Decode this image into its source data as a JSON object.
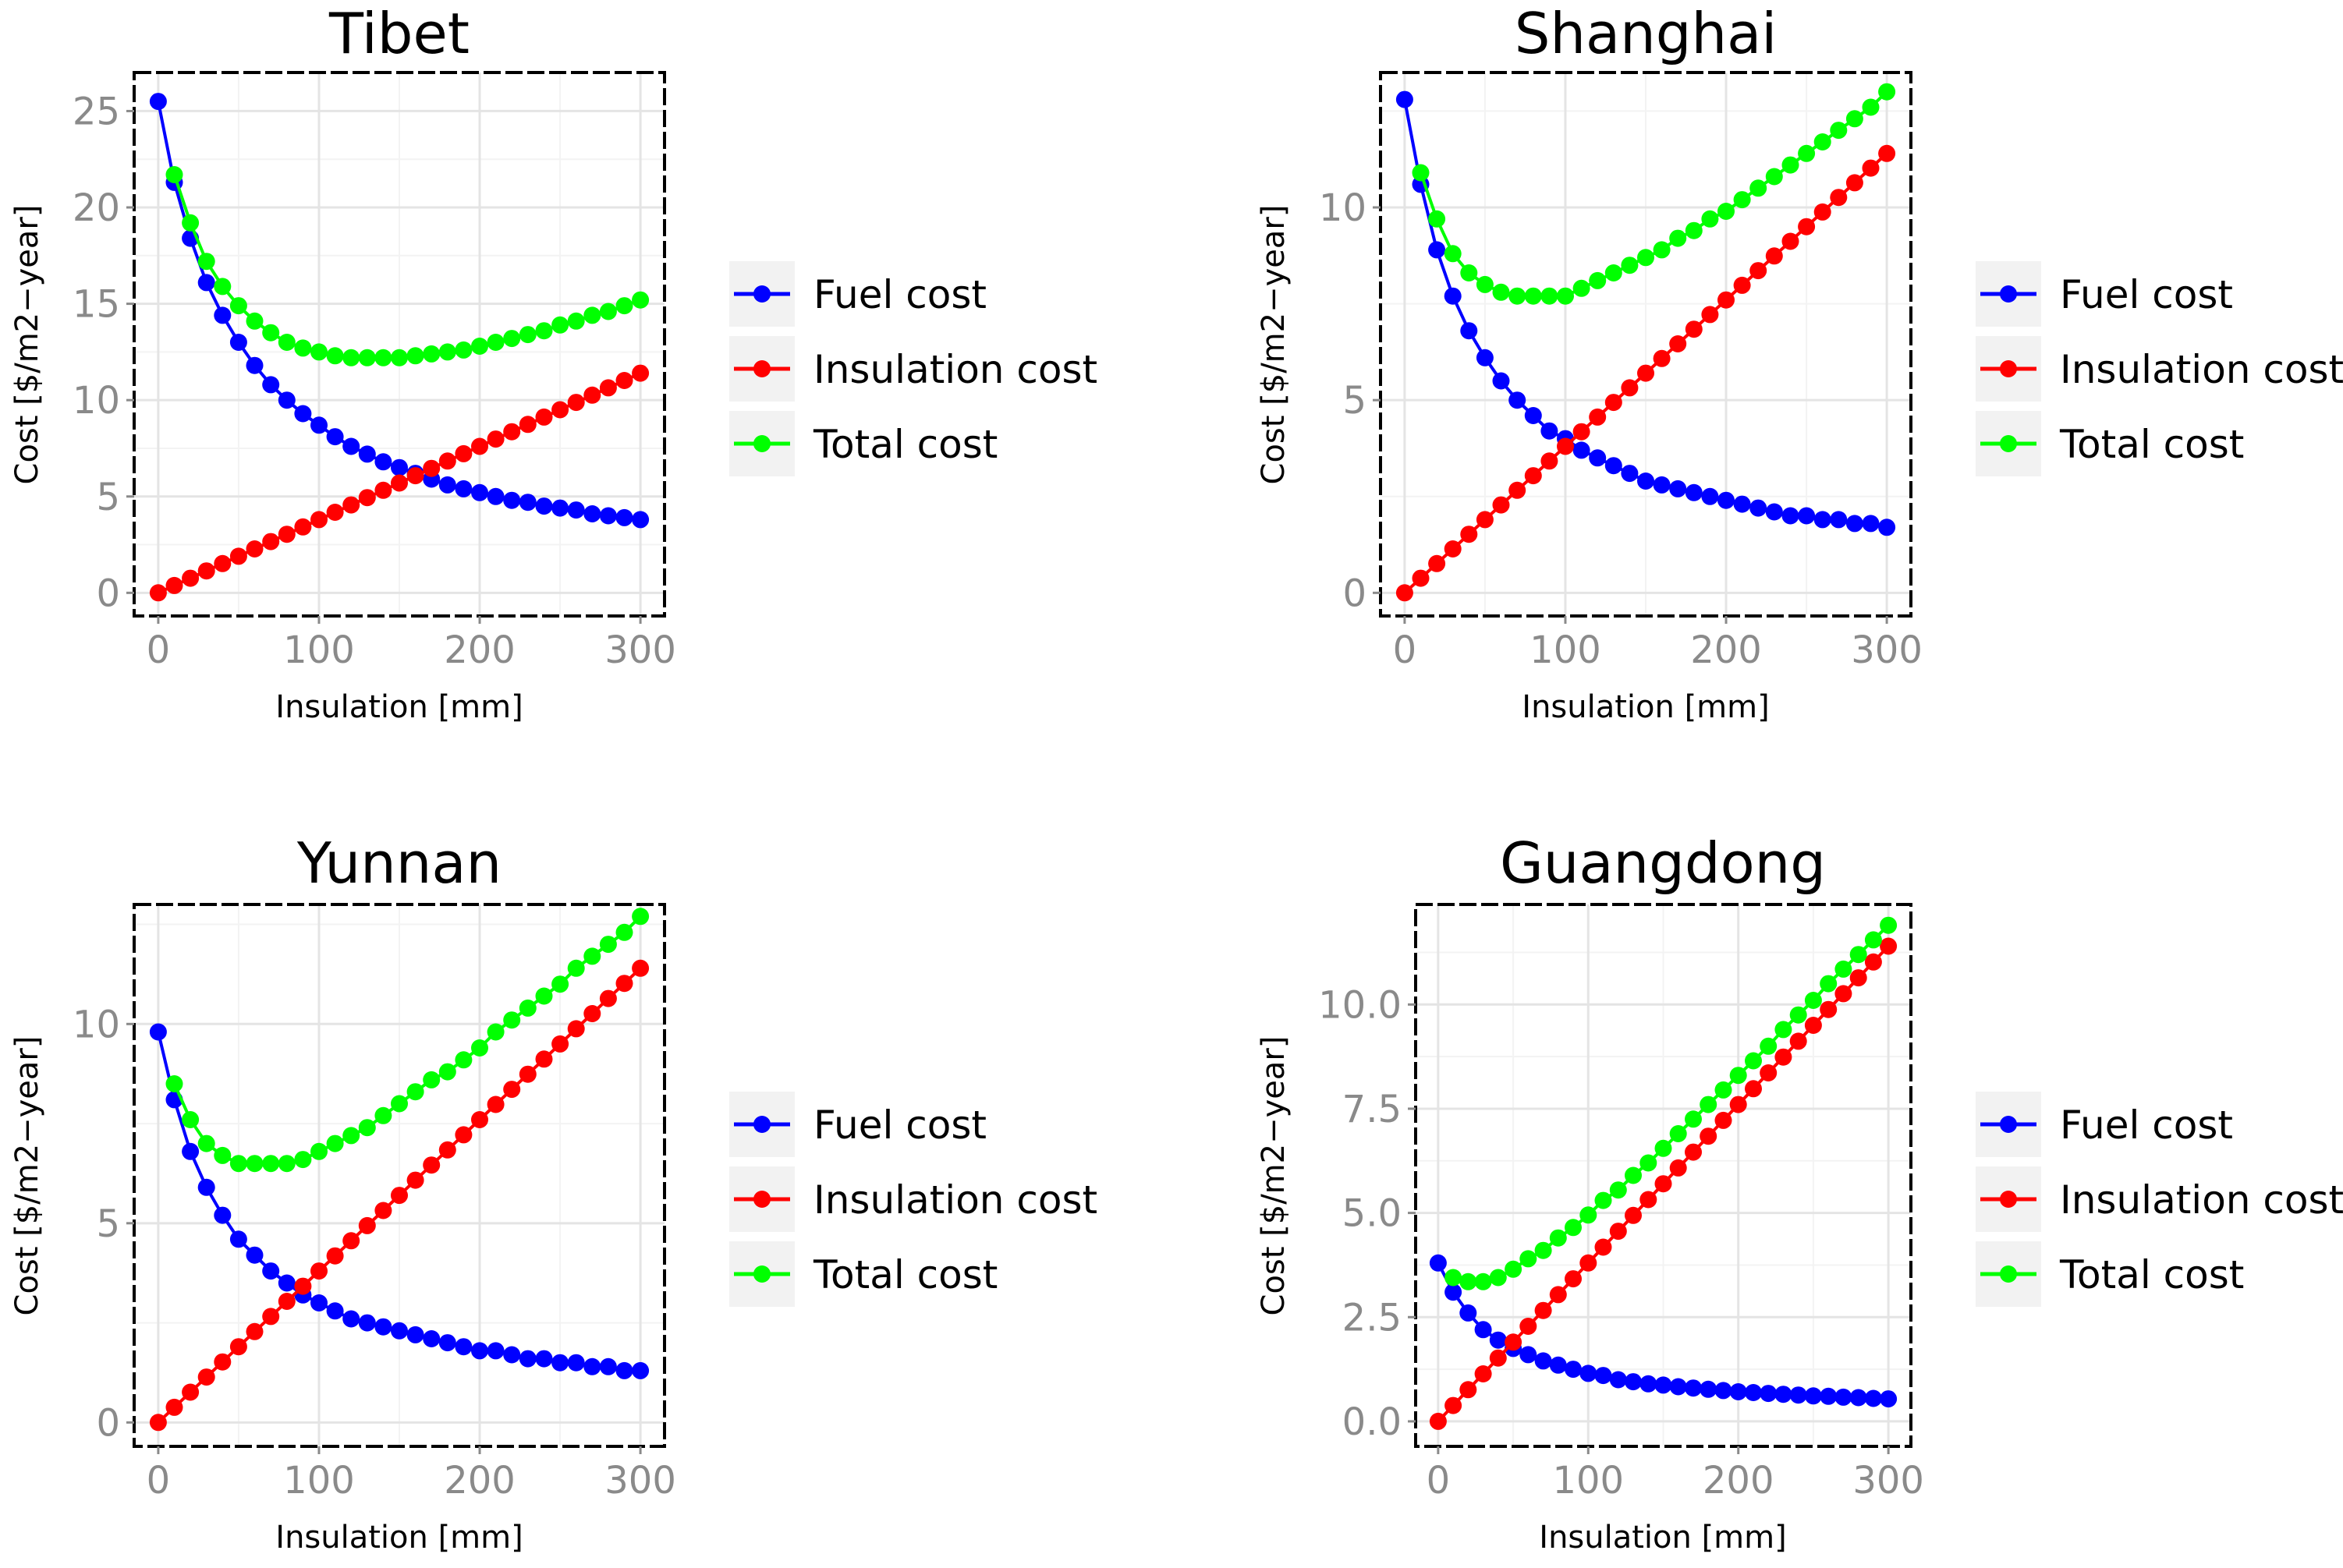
{
  "chart_data": [
    {
      "type": "line",
      "title": "Tibet",
      "xlabel": "Insulation [mm]",
      "ylabel": "Cost [$/m2−year]",
      "xlim": [
        -15,
        315
      ],
      "ylim": [
        -1.2,
        27
      ],
      "xticks": [
        0,
        100,
        200,
        300
      ],
      "yticks": [
        0,
        5,
        10,
        15,
        20,
        25
      ],
      "ytick_labels": [
        "0",
        "5",
        "10",
        "15",
        "20",
        "25"
      ],
      "x": [
        0,
        10,
        20,
        30,
        40,
        50,
        60,
        70,
        80,
        90,
        100,
        110,
        120,
        130,
        140,
        150,
        160,
        170,
        180,
        190,
        200,
        210,
        220,
        230,
        240,
        250,
        260,
        270,
        280,
        290,
        300
      ],
      "series": [
        {
          "name": "Fuel cost",
          "color": "#0000ff",
          "values": [
            25.5,
            21.3,
            18.4,
            16.1,
            14.4,
            13.0,
            11.8,
            10.8,
            10.0,
            9.3,
            8.7,
            8.1,
            7.6,
            7.2,
            6.8,
            6.5,
            6.2,
            5.9,
            5.6,
            5.4,
            5.2,
            5.0,
            4.8,
            4.7,
            4.5,
            4.4,
            4.3,
            4.1,
            4.0,
            3.9,
            3.8
          ]
        },
        {
          "name": "Insulation cost",
          "color": "#ff0000",
          "values": [
            0.0,
            0.38,
            0.76,
            1.14,
            1.52,
            1.9,
            2.28,
            2.66,
            3.04,
            3.42,
            3.8,
            4.18,
            4.56,
            4.94,
            5.32,
            5.7,
            6.08,
            6.46,
            6.84,
            7.22,
            7.6,
            7.98,
            8.36,
            8.74,
            9.12,
            9.5,
            9.88,
            10.26,
            10.64,
            11.02,
            11.4
          ]
        },
        {
          "name": "Total cost",
          "color": "#00ff00",
          "values": [
            null,
            21.7,
            19.2,
            17.2,
            15.9,
            14.9,
            14.1,
            13.5,
            13.0,
            12.7,
            12.5,
            12.3,
            12.2,
            12.2,
            12.2,
            12.2,
            12.3,
            12.4,
            12.5,
            12.6,
            12.8,
            13.0,
            13.2,
            13.4,
            13.6,
            13.9,
            14.1,
            14.4,
            14.6,
            14.9,
            15.2
          ]
        }
      ],
      "legend": [
        "Fuel cost",
        "Insulation cost",
        "Total cost"
      ]
    },
    {
      "type": "line",
      "title": "Shanghai",
      "xlabel": "Insulation [mm]",
      "ylabel": "Cost [$/m2−year]",
      "xlim": [
        -15,
        315
      ],
      "ylim": [
        -0.6,
        13.5
      ],
      "xticks": [
        0,
        100,
        200,
        300
      ],
      "yticks": [
        0,
        5,
        10
      ],
      "ytick_labels": [
        "0",
        "5",
        "10"
      ],
      "x": [
        0,
        10,
        20,
        30,
        40,
        50,
        60,
        70,
        80,
        90,
        100,
        110,
        120,
        130,
        140,
        150,
        160,
        170,
        180,
        190,
        200,
        210,
        220,
        230,
        240,
        250,
        260,
        270,
        280,
        290,
        300
      ],
      "series": [
        {
          "name": "Fuel cost",
          "color": "#0000ff",
          "values": [
            12.8,
            10.6,
            8.9,
            7.7,
            6.8,
            6.1,
            5.5,
            5.0,
            4.6,
            4.2,
            4.0,
            3.7,
            3.5,
            3.3,
            3.1,
            2.9,
            2.8,
            2.7,
            2.6,
            2.5,
            2.4,
            2.3,
            2.2,
            2.1,
            2.0,
            2.0,
            1.9,
            1.9,
            1.8,
            1.8,
            1.7
          ]
        },
        {
          "name": "Insulation cost",
          "color": "#ff0000",
          "values": [
            0.0,
            0.38,
            0.76,
            1.14,
            1.52,
            1.9,
            2.28,
            2.66,
            3.04,
            3.42,
            3.8,
            4.18,
            4.56,
            4.94,
            5.32,
            5.7,
            6.08,
            6.46,
            6.84,
            7.22,
            7.6,
            7.98,
            8.36,
            8.74,
            9.12,
            9.5,
            9.88,
            10.26,
            10.64,
            11.02,
            11.4
          ]
        },
        {
          "name": "Total cost",
          "color": "#00ff00",
          "values": [
            null,
            10.9,
            9.7,
            8.8,
            8.3,
            8.0,
            7.8,
            7.7,
            7.7,
            7.7,
            7.7,
            7.9,
            8.1,
            8.3,
            8.5,
            8.7,
            8.9,
            9.2,
            9.4,
            9.7,
            9.9,
            10.2,
            10.5,
            10.8,
            11.1,
            11.4,
            11.7,
            12.0,
            12.3,
            12.6,
            13.0
          ]
        }
      ],
      "legend": [
        "Fuel cost",
        "Insulation cost",
        "Total cost"
      ]
    },
    {
      "type": "line",
      "title": "Yunnan",
      "xlabel": "Insulation [mm]",
      "ylabel": "Cost [$/m2−year]",
      "xlim": [
        -15,
        315
      ],
      "ylim": [
        -0.6,
        13.0
      ],
      "xticks": [
        0,
        100,
        200,
        300
      ],
      "yticks": [
        0,
        5,
        10
      ],
      "ytick_labels": [
        "0",
        "5",
        "10"
      ],
      "x": [
        0,
        10,
        20,
        30,
        40,
        50,
        60,
        70,
        80,
        90,
        100,
        110,
        120,
        130,
        140,
        150,
        160,
        170,
        180,
        190,
        200,
        210,
        220,
        230,
        240,
        250,
        260,
        270,
        280,
        290,
        300
      ],
      "series": [
        {
          "name": "Fuel cost",
          "color": "#0000ff",
          "values": [
            9.8,
            8.1,
            6.8,
            5.9,
            5.2,
            4.6,
            4.2,
            3.8,
            3.5,
            3.2,
            3.0,
            2.8,
            2.6,
            2.5,
            2.4,
            2.3,
            2.2,
            2.1,
            2.0,
            1.9,
            1.8,
            1.8,
            1.7,
            1.6,
            1.6,
            1.5,
            1.5,
            1.4,
            1.4,
            1.3,
            1.3
          ]
        },
        {
          "name": "Insulation cost",
          "color": "#ff0000",
          "values": [
            0.0,
            0.38,
            0.76,
            1.14,
            1.52,
            1.9,
            2.28,
            2.66,
            3.04,
            3.42,
            3.8,
            4.18,
            4.56,
            4.94,
            5.32,
            5.7,
            6.08,
            6.46,
            6.84,
            7.22,
            7.6,
            7.98,
            8.36,
            8.74,
            9.12,
            9.5,
            9.88,
            10.26,
            10.64,
            11.02,
            11.4
          ]
        },
        {
          "name": "Total cost",
          "color": "#00ff00",
          "values": [
            null,
            8.5,
            7.6,
            7.0,
            6.7,
            6.5,
            6.5,
            6.5,
            6.5,
            6.6,
            6.8,
            7.0,
            7.2,
            7.4,
            7.7,
            8.0,
            8.3,
            8.6,
            8.8,
            9.1,
            9.4,
            9.8,
            10.1,
            10.4,
            10.7,
            11.0,
            11.4,
            11.7,
            12.0,
            12.3,
            12.7
          ]
        }
      ],
      "legend": [
        "Fuel cost",
        "Insulation cost",
        "Total cost"
      ]
    },
    {
      "type": "line",
      "title": "Guangdong",
      "xlabel": "Insulation [mm]",
      "ylabel": "Cost [$/m2−year]",
      "xlim": [
        -15,
        315
      ],
      "ylim": [
        -0.6,
        12.4
      ],
      "xticks": [
        0,
        100,
        200,
        300
      ],
      "yticks": [
        0,
        2.5,
        5,
        7.5,
        10
      ],
      "ytick_labels": [
        "0.0",
        "2.5",
        "5.0",
        "7.5",
        "10.0"
      ],
      "x": [
        0,
        10,
        20,
        30,
        40,
        50,
        60,
        70,
        80,
        90,
        100,
        110,
        120,
        130,
        140,
        150,
        160,
        170,
        180,
        190,
        200,
        210,
        220,
        230,
        240,
        250,
        260,
        270,
        280,
        290,
        300
      ],
      "series": [
        {
          "name": "Fuel cost",
          "color": "#0000ff",
          "values": [
            3.8,
            3.1,
            2.6,
            2.2,
            1.95,
            1.75,
            1.6,
            1.45,
            1.35,
            1.25,
            1.15,
            1.1,
            1.0,
            0.95,
            0.9,
            0.87,
            0.83,
            0.8,
            0.77,
            0.74,
            0.71,
            0.69,
            0.67,
            0.65,
            0.63,
            0.61,
            0.6,
            0.58,
            0.57,
            0.55,
            0.54
          ]
        },
        {
          "name": "Insulation cost",
          "color": "#ff0000",
          "values": [
            0.0,
            0.38,
            0.76,
            1.14,
            1.52,
            1.9,
            2.28,
            2.66,
            3.04,
            3.42,
            3.8,
            4.18,
            4.56,
            4.94,
            5.32,
            5.7,
            6.08,
            6.46,
            6.84,
            7.22,
            7.6,
            7.98,
            8.36,
            8.74,
            9.12,
            9.5,
            9.88,
            10.26,
            10.64,
            11.02,
            11.4
          ]
        },
        {
          "name": "Total cost",
          "color": "#00ff00",
          "values": [
            null,
            3.45,
            3.35,
            3.35,
            3.45,
            3.65,
            3.9,
            4.1,
            4.4,
            4.65,
            4.95,
            5.3,
            5.55,
            5.9,
            6.2,
            6.55,
            6.9,
            7.25,
            7.6,
            7.95,
            8.3,
            8.65,
            9.0,
            9.4,
            9.75,
            10.1,
            10.5,
            10.85,
            11.2,
            11.55,
            11.9
          ]
        }
      ],
      "legend": [
        "Fuel cost",
        "Insulation cost",
        "Total cost"
      ]
    }
  ]
}
